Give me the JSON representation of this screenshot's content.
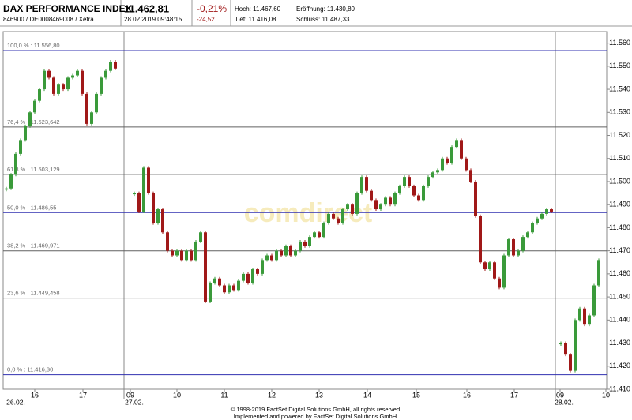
{
  "header": {
    "title": "DAX PERFORMANCE INDEX",
    "subtitle": "846900 / DE0008469008 / Xetra",
    "price": "11.462,81",
    "timestamp": "28.02.2019 09:48:15",
    "change_pct": "-0,21%",
    "change_abs": "-24,52",
    "high": "Hoch: 11.467,60",
    "open": "Eröffnung: 11.430,80",
    "low": "Tief: 11.416,08",
    "close": "Schluss: 11.487,33"
  },
  "chart_data": {
    "type": "candlestick",
    "watermark": "comdirect",
    "up_color": "#3a9a3a",
    "down_color": "#a01818",
    "values": [
      11.497,
      11.503,
      11.512,
      11.518,
      11.524,
      11.53,
      11.535,
      11.54,
      11.548,
      11.545,
      11.538,
      11.542,
      11.54,
      11.545,
      11.546,
      11.548,
      11.538,
      11.525,
      11.53,
      11.538,
      11.545,
      11.548,
      11.552,
      11.549,
      null,
      null,
      null,
      11.495,
      11.487,
      11.506,
      11.495,
      11.482,
      11.488,
      11.478,
      11.47,
      11.468,
      11.47,
      11.466,
      11.47,
      11.466,
      11.474,
      11.478,
      11.448,
      11.456,
      11.458,
      11.455,
      11.452,
      11.455,
      11.453,
      11.457,
      11.46,
      11.456,
      11.462,
      11.46,
      11.466,
      11.468,
      11.466,
      11.47,
      11.468,
      11.472,
      11.468,
      11.47,
      11.474,
      11.472,
      11.476,
      11.478,
      11.476,
      11.482,
      11.486,
      11.484,
      11.482,
      11.488,
      11.49,
      11.486,
      11.495,
      11.502,
      11.496,
      11.492,
      11.488,
      11.49,
      11.493,
      11.49,
      11.495,
      11.498,
      11.502,
      11.498,
      11.494,
      11.492,
      11.498,
      11.502,
      11.504,
      11.505,
      11.51,
      11.508,
      11.515,
      11.518,
      11.51,
      11.505,
      11.5,
      11.485,
      11.465,
      11.462,
      11.465,
      11.458,
      11.454,
      11.468,
      11.475,
      11.468,
      11.47,
      11.476,
      11.478,
      11.482,
      11.484,
      11.486,
      11.488,
      11.487,
      null,
      11.43,
      11.425,
      11.418,
      11.44,
      11.445,
      11.438,
      11.442,
      11.455,
      11.466
    ],
    "ylim": [
      11.41,
      11.565
    ],
    "yticks": [
      {
        "value": 11.41,
        "label": "11.410"
      },
      {
        "value": 11.42,
        "label": "11.420"
      },
      {
        "value": 11.43,
        "label": "11.430"
      },
      {
        "value": 11.44,
        "label": "11.440"
      },
      {
        "value": 11.45,
        "label": "11.450"
      },
      {
        "value": 11.46,
        "label": "11.460"
      },
      {
        "value": 11.47,
        "label": "11.470"
      },
      {
        "value": 11.48,
        "label": "11.480"
      },
      {
        "value": 11.49,
        "label": "11.490"
      },
      {
        "value": 11.5,
        "label": "11.500"
      },
      {
        "value": 11.51,
        "label": "11.510"
      },
      {
        "value": 11.52,
        "label": "11.520"
      },
      {
        "value": 11.53,
        "label": "11.530"
      },
      {
        "value": 11.54,
        "label": "11.540"
      },
      {
        "value": 11.55,
        "label": "11.550"
      },
      {
        "value": 11.56,
        "label": "11.560"
      }
    ],
    "x_labels": [
      "16",
      "17",
      "09",
      "10",
      "11",
      "12",
      "13",
      "14",
      "15",
      "16",
      "17",
      "09",
      "10"
    ],
    "date_labels": [
      "26.02.",
      "27.02.",
      "28.02."
    ],
    "levels": [
      {
        "value": 11.5568,
        "label": "100,0 % : 11.556,80",
        "color": "#3030b0"
      },
      {
        "value": 11.523642,
        "label": "76,4 % : 11.523,642",
        "color": "#606060"
      },
      {
        "value": 11.503129,
        "label": "61,8 % : 11.503,129",
        "color": "#606060"
      },
      {
        "value": 11.48655,
        "label": "50,0 % : 11.486,55",
        "color": "#3030b0"
      },
      {
        "value": 11.469971,
        "label": "38,2 % : 11.469,971",
        "color": "#606060"
      },
      {
        "value": 11.449458,
        "label": "23,6 % : 11.449,458",
        "color": "#606060"
      },
      {
        "value": 11.4163,
        "label": "0,0 % : 11.416,30",
        "color": "#3030b0"
      }
    ]
  },
  "footer": {
    "line1": "© 1998-2019 FactSet Digital Solutions GmbH, all rights reserved.",
    "line2": "Implemented and powered by FactSet Digital Solutions GmbH."
  }
}
